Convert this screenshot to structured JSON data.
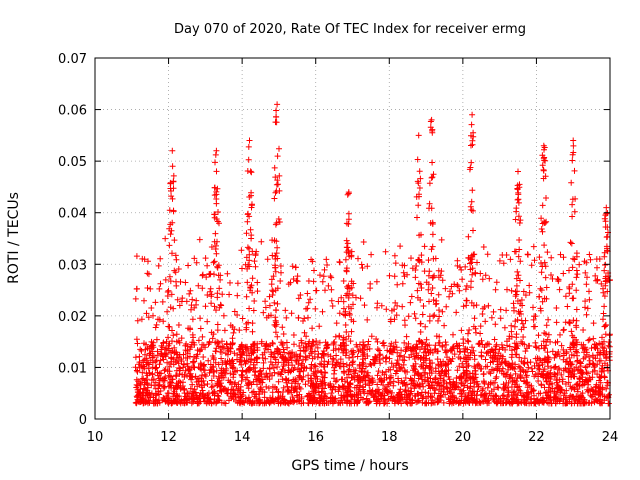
{
  "chart_data": {
    "type": "scatter",
    "title": "Day 070 of 2020, Rate Of TEC Index for receiver ermg",
    "xlabel": "GPS time / hours",
    "ylabel": "ROTI / TECUs",
    "xlim": [
      10,
      24
    ],
    "ylim": [
      0,
      0.07
    ],
    "x_ticks": [
      "10",
      "12",
      "14",
      "16",
      "18",
      "20",
      "22",
      "24"
    ],
    "y_ticks": [
      "0",
      "0.01",
      "0.02",
      "0.03",
      "0.04",
      "0.05",
      "0.06",
      "0.07"
    ],
    "grid": true,
    "marker": "plus",
    "series": [
      {
        "color": "#ff0000",
        "x_range": [
          11.1,
          24.0
        ],
        "typical_y_range": [
          0.003,
          0.02
        ],
        "peaks": [
          {
            "x": 12.1,
            "y": 0.052
          },
          {
            "x": 13.3,
            "y": 0.052
          },
          {
            "x": 14.2,
            "y": 0.054
          },
          {
            "x": 14.95,
            "y": 0.061
          },
          {
            "x": 16.9,
            "y": 0.044
          },
          {
            "x": 18.8,
            "y": 0.055
          },
          {
            "x": 19.15,
            "y": 0.058
          },
          {
            "x": 20.25,
            "y": 0.059
          },
          {
            "x": 21.5,
            "y": 0.048
          },
          {
            "x": 22.2,
            "y": 0.053
          },
          {
            "x": 23.0,
            "y": 0.054
          },
          {
            "x": 23.9,
            "y": 0.041
          }
        ]
      }
    ]
  }
}
